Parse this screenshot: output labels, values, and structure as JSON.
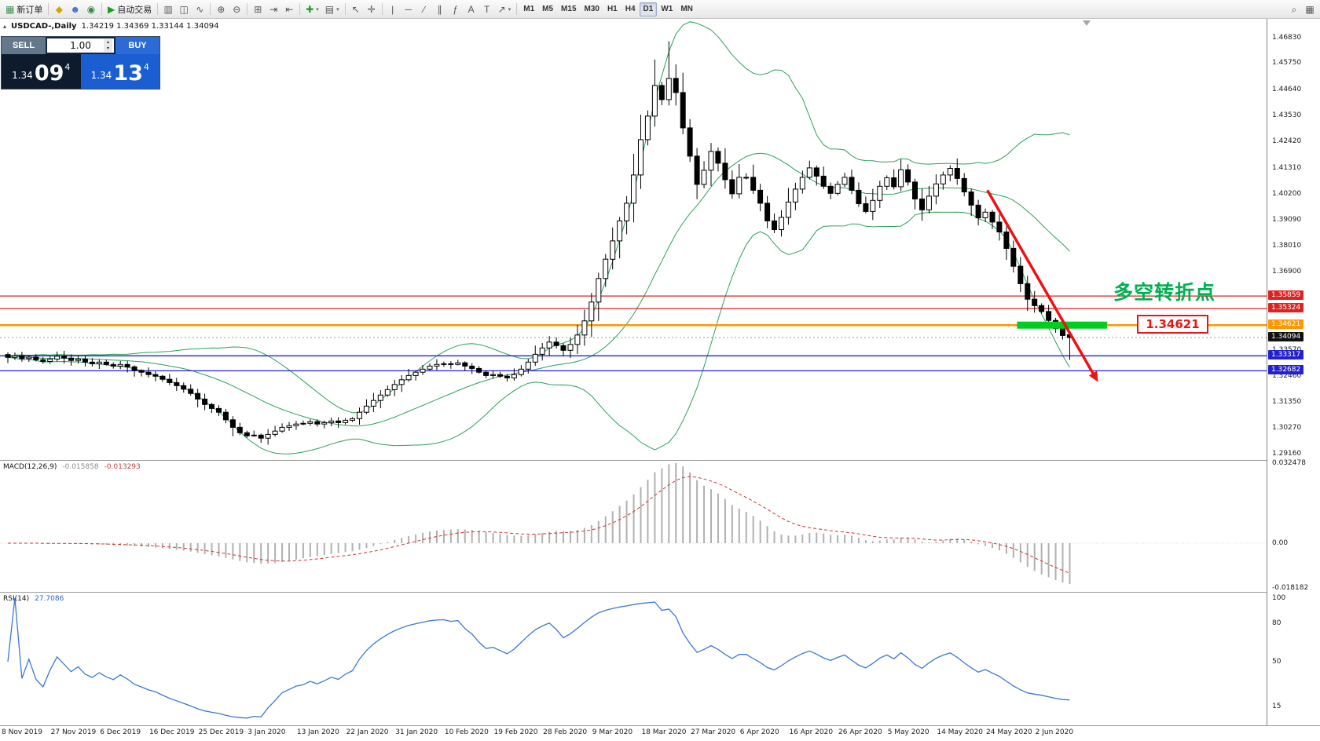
{
  "colors": {
    "band": "#2ca05a",
    "up_candle": "#ffffff",
    "down_candle": "#000000",
    "candle_border": "#000000",
    "macd_hist": "#b0b0b0",
    "macd_signal": "#d03030",
    "rsi_line": "#3a78d2",
    "arrow_red": "#ee1111",
    "highlight_green": "#00cc22",
    "annotation_green": "#00b050"
  },
  "toolbar": {
    "caret_glyph": "▾",
    "groups": [
      {
        "items": [
          {
            "name": "new-order",
            "glyph": "▦",
            "label": "新订单",
            "color": "#3f8f4f"
          }
        ]
      },
      {
        "items": [
          {
            "name": "metaeditor",
            "glyph": "◆",
            "color": "#d8a400"
          },
          {
            "name": "user",
            "glyph": "☻",
            "color": "#3a6fd0"
          },
          {
            "name": "community",
            "glyph": "◉",
            "color": "#2e8b40"
          }
        ]
      },
      {
        "items": [
          {
            "name": "autotrading",
            "glyph": "▶",
            "label": "自动交易",
            "color": "#18a018"
          }
        ]
      },
      {
        "items": [
          {
            "name": "chart-bars",
            "glyph": "▥"
          },
          {
            "name": "chart-candles",
            "glyph": "◫"
          },
          {
            "name": "chart-line",
            "glyph": "∿"
          }
        ]
      },
      {
        "items": [
          {
            "name": "zoom-in",
            "glyph": "⊕"
          },
          {
            "name": "zoom-out",
            "glyph": "⊖"
          }
        ]
      },
      {
        "items": [
          {
            "name": "tile-windows",
            "glyph": "⊞"
          },
          {
            "name": "auto-scroll",
            "glyph": "⇥"
          },
          {
            "name": "chart-shift",
            "glyph": "⇤"
          }
        ]
      },
      {
        "items": [
          {
            "name": "new-chart",
            "glyph": "✚",
            "color": "#18a018",
            "caret": true
          },
          {
            "name": "profiles",
            "glyph": "▤",
            "caret": true
          }
        ]
      },
      {
        "items": [
          {
            "name": "cursor",
            "glyph": "↖"
          },
          {
            "name": "crosshair",
            "glyph": "✛"
          }
        ]
      },
      {
        "items": [
          {
            "name": "vertical-line",
            "glyph": "|"
          },
          {
            "name": "horizontal-line",
            "glyph": "─"
          },
          {
            "name": "trendline",
            "glyph": "∕"
          },
          {
            "name": "equidistant-channel",
            "glyph": "∥"
          },
          {
            "name": "fibonacci",
            "glyph": "ƒ"
          },
          {
            "name": "text",
            "glyph": "A"
          },
          {
            "name": "text-label",
            "glyph": "T"
          },
          {
            "name": "arrows",
            "glyph": "↗",
            "caret": true
          }
        ]
      }
    ],
    "timeframes": [
      "M1",
      "M5",
      "M15",
      "M30",
      "H1",
      "H4",
      "D1",
      "W1",
      "MN"
    ],
    "active_timeframe": "D1",
    "right_items": [
      {
        "name": "search",
        "glyph": "⌕"
      },
      {
        "name": "data-window",
        "glyph": "▦"
      }
    ]
  },
  "chart_header": {
    "expand_glyph": "▴",
    "symbol": "USDCAD-,Daily",
    "ohlc": "1.34219 1.34369 1.33144 1.34094"
  },
  "quote_panel": {
    "sell_label": "SELL",
    "buy_label": "BUY",
    "volume": "1.00",
    "spinner_up": "▴",
    "spinner_down": "▾",
    "sell_prefix": "1.34",
    "sell_big": "09",
    "sell_sup": "4",
    "buy_prefix": "1.34",
    "buy_big": "13",
    "buy_sup": "4"
  },
  "drawings": {
    "note": {
      "text": "多空转折点",
      "day": 157.2,
      "price": 1.3615
    },
    "label_box": {
      "text": "1.34621",
      "day": 160.6,
      "price": 1.34621
    },
    "green_rect": {
      "price": 1.34621,
      "day_start": 143.5,
      "day_end": 156.3
    },
    "arrow": {
      "day_start": 139.3,
      "price_start": 1.4035,
      "day_end": 154.8,
      "price_end": 1.3232
    }
  },
  "chart_data": {
    "type": "candlestick",
    "symbol": "USDCAD",
    "timeframe": "Daily",
    "ohlc_current": {
      "open": 1.34219,
      "high": 1.34369,
      "low": 1.33144,
      "close": 1.34094
    },
    "price_axis": {
      "ticks": [
        "1.46830",
        "1.45750",
        "1.44640",
        "1.43530",
        "1.42420",
        "1.41310",
        "1.40200",
        "1.39090",
        "1.38010",
        "1.36900",
        "1.33570",
        "1.32460",
        "1.31350",
        "1.30270",
        "1.29160"
      ]
    },
    "tag_levels": [
      {
        "label": "1.35859",
        "value": 1.35859,
        "color": "#dd2222",
        "width": 1.3,
        "style": "line"
      },
      {
        "label": "1.35324",
        "value": 1.35324,
        "color": "#dd2222",
        "width": 1.3,
        "style": "line"
      },
      {
        "label": "1.34621",
        "value": 1.34621,
        "color": "#ff9800",
        "width": 2.5,
        "style": "line"
      },
      {
        "label": "1.34094",
        "value": 1.34094,
        "color": "#111111",
        "width": 1,
        "style": "current"
      },
      {
        "label": "1.33317",
        "value": 1.33317,
        "color": "#2222cc",
        "width": 1.3,
        "style": "line"
      },
      {
        "label": "1.32682",
        "value": 1.32682,
        "color": "#2222cc",
        "width": 1.3,
        "style": "line"
      }
    ],
    "dates": [
      "8 Nov 2019",
      "27 Nov 2019",
      "6 Dec 2019",
      "16 Dec 2019",
      "25 Dec 2019",
      "3 Jan 2020",
      "13 Jan 2020",
      "22 Jan 2020",
      "31 Jan 2020",
      "10 Feb 2020",
      "19 Feb 2020",
      "28 Feb 2020",
      "9 Mar 2020",
      "18 Mar 2020",
      "27 Mar 2020",
      "6 Apr 2020",
      "16 Apr 2020",
      "26 Apr 2020",
      "5 May 2020",
      "14 May 2020",
      "24 May 2020",
      "2 Jun 2020"
    ],
    "date_step_days": 7,
    "closes": [
      1.3325,
      1.3332,
      1.332,
      1.3326,
      1.3315,
      1.3308,
      1.3318,
      1.333,
      1.3322,
      1.3312,
      1.3318,
      1.3305,
      1.3298,
      1.3305,
      1.3295,
      1.3288,
      1.3295,
      1.3285,
      1.327,
      1.3262,
      1.3252,
      1.3245,
      1.3232,
      1.3218,
      1.3205,
      1.319,
      1.3172,
      1.3148,
      1.3125,
      1.3108,
      1.3092,
      1.306,
      1.3028,
      1.3005,
      1.2992,
      1.2995,
      1.2982,
      1.2998,
      1.3012,
      1.3028,
      1.3035,
      1.3042,
      1.3045,
      1.3052,
      1.3042,
      1.3048,
      1.3055,
      1.3048,
      1.3058,
      1.3065,
      1.3092,
      1.3118,
      1.3142,
      1.3165,
      1.3188,
      1.321,
      1.323,
      1.3248,
      1.3262,
      1.3275,
      1.3288,
      1.3295,
      1.3298,
      1.3295,
      1.3302,
      1.3288,
      1.3278,
      1.3262,
      1.3248,
      1.3252,
      1.3245,
      1.3238,
      1.3252,
      1.3275,
      1.3305,
      1.3338,
      1.3365,
      1.339,
      1.3375,
      1.3355,
      1.338,
      1.342,
      1.348,
      1.356,
      1.366,
      1.3742,
      1.382,
      1.3905,
      1.398,
      1.41,
      1.425,
      1.435,
      1.448,
      1.442,
      1.451,
      1.445,
      1.43,
      1.418,
      1.406,
      1.412,
      1.42,
      1.415,
      1.408,
      1.402,
      1.409,
      1.409,
      1.4035,
      1.398,
      1.3905,
      1.3868,
      1.392,
      1.3985,
      1.404,
      1.409,
      1.413,
      1.4095,
      1.4052,
      1.4022,
      1.406,
      1.409,
      1.4035,
      1.3978,
      1.3945,
      1.3992,
      1.4052,
      1.4088,
      1.405,
      1.4122,
      1.407,
      1.3998,
      1.3952,
      1.401,
      1.4062,
      1.41,
      1.4128,
      1.4085,
      1.4028,
      1.3972,
      1.3918,
      1.3942,
      1.39,
      1.3858,
      1.3788,
      1.3712,
      1.3638,
      1.3572,
      1.3545,
      1.352,
      1.3482,
      1.3448,
      1.3418,
      1.3409
    ],
    "bollinger": {
      "period": 20,
      "deviation": 2
    },
    "macd": {
      "label": "MACD(12,26,9)",
      "value_main": "-0.015858",
      "value_signal": "-0.013293",
      "axis_ticks": [
        {
          "label": "0.032478",
          "value": 0.032478
        },
        {
          "label": "0.00",
          "value": 0
        },
        {
          "label": "-0.018182",
          "value": -0.018182
        }
      ]
    },
    "rsi": {
      "label": "RSI(14)",
      "value": "27.7086",
      "axis_ticks": [
        {
          "label": "100",
          "value": 100
        },
        {
          "label": "80",
          "value": 80
        },
        {
          "label": "50",
          "value": 50
        },
        {
          "label": "15",
          "value": 15
        }
      ]
    }
  }
}
